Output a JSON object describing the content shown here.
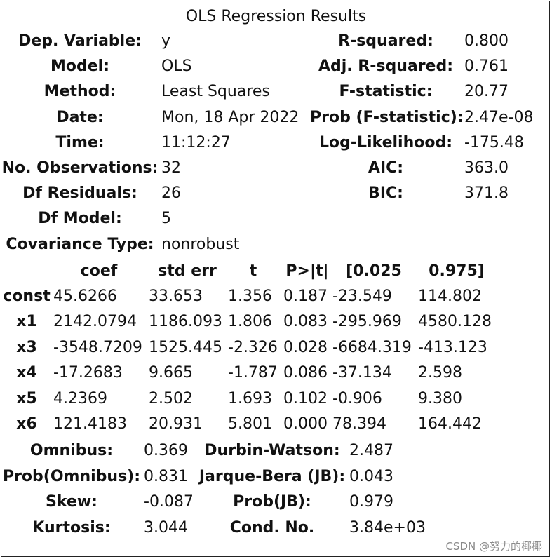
{
  "caption": "OLS Regression Results",
  "summary": {
    "left": [
      {
        "label": "Dep. Variable:",
        "value": "y"
      },
      {
        "label": "Model:",
        "value": "OLS"
      },
      {
        "label": "Method:",
        "value": "Least Squares"
      },
      {
        "label": "Date:",
        "value": "Mon, 18 Apr 2022"
      },
      {
        "label": "Time:",
        "value": "11:12:27"
      },
      {
        "label": "No. Observations:",
        "value": "32"
      },
      {
        "label": "Df Residuals:",
        "value": "26"
      },
      {
        "label": "Df Model:",
        "value": "5"
      },
      {
        "label": "Covariance Type:",
        "value": "nonrobust"
      }
    ],
    "right": [
      {
        "label": "R-squared:",
        "value": "0.800"
      },
      {
        "label": "Adj. R-squared:",
        "value": "0.761"
      },
      {
        "label": "F-statistic:",
        "value": "20.77"
      },
      {
        "label": "Prob (F-statistic):",
        "value": "2.47e-08"
      },
      {
        "label": "Log-Likelihood:",
        "value": "-175.48"
      },
      {
        "label": "AIC:",
        "value": "363.0"
      },
      {
        "label": "BIC:",
        "value": "371.8"
      }
    ]
  },
  "coef_table": {
    "headers": [
      "coef",
      "std err",
      "t",
      "P>|t|",
      "[0.025",
      "0.975]"
    ],
    "rows": [
      {
        "name": "const",
        "values": [
          "45.6266",
          "33.653",
          "1.356",
          "0.187",
          "-23.549",
          "114.802"
        ]
      },
      {
        "name": "x1",
        "values": [
          "2142.0794",
          "1186.093",
          "1.806",
          "0.083",
          "-295.969",
          "4580.128"
        ]
      },
      {
        "name": "x3",
        "values": [
          "-3548.7209",
          "1525.445",
          "-2.326",
          "0.028",
          "-6684.319",
          "-413.123"
        ]
      },
      {
        "name": "x4",
        "values": [
          "-17.2683",
          "9.665",
          "-1.787",
          "0.086",
          "-37.134",
          "2.598"
        ]
      },
      {
        "name": "x5",
        "values": [
          "4.2369",
          "2.502",
          "1.693",
          "0.102",
          "-0.906",
          "9.380"
        ]
      },
      {
        "name": "x6",
        "values": [
          "121.4183",
          "20.931",
          "5.801",
          "0.000",
          "78.394",
          "164.442"
        ]
      }
    ]
  },
  "diagnostics": [
    {
      "label1": "Omnibus:",
      "value1": "0.369",
      "label2": "Durbin-Watson:",
      "value2": "2.487"
    },
    {
      "label1": "Prob(Omnibus):",
      "value1": "0.831",
      "label2": "Jarque-Bera (JB):",
      "value2": "0.043"
    },
    {
      "label1": "Skew:",
      "value1": "-0.087",
      "label2": "Prob(JB):",
      "value2": "0.979"
    },
    {
      "label1": "Kurtosis:",
      "value1": "3.044",
      "label2": "Cond. No.",
      "value2": "3.84e+03"
    }
  ],
  "watermark": "CSDN @努力的椰椰"
}
